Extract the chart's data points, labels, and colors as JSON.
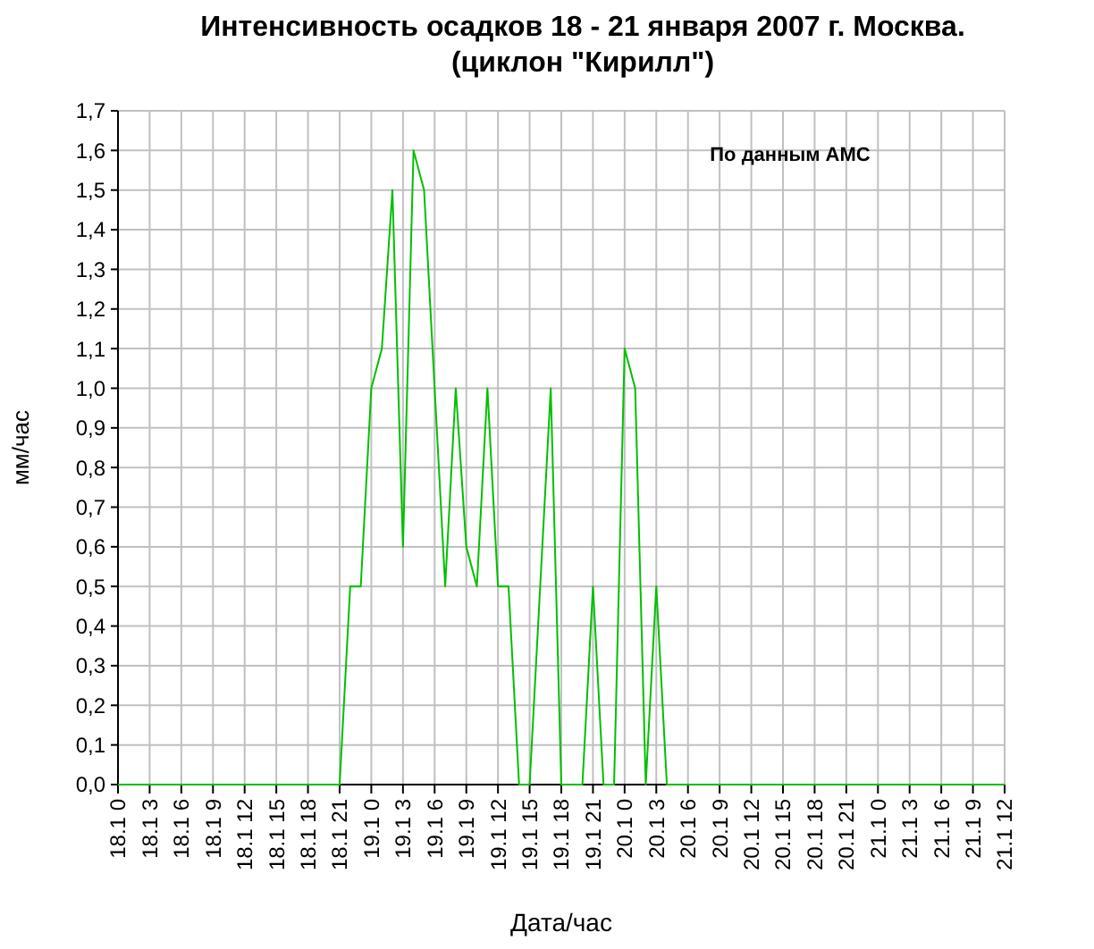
{
  "chart_data": {
    "type": "line",
    "title": "Интенсивность осадков 18 - 21 января 2007 г. Москва.",
    "subtitle": "(циклон \"Кирилл\")",
    "xlabel": "Дата/час",
    "ylabel": "мм/час",
    "annotations": [
      "По данным АМС"
    ],
    "categories": [
      "18.1 0",
      null,
      null,
      "18.1 3",
      null,
      null,
      "18.1 6",
      null,
      null,
      "18.1 9",
      null,
      null,
      "18.1 12",
      null,
      null,
      "18.1 15",
      null,
      null,
      "18.1 18",
      null,
      null,
      "18.1 21",
      null,
      null,
      "19.1 0",
      null,
      null,
      "19.1 3",
      null,
      null,
      "19.1 6",
      null,
      null,
      "19.1 9",
      null,
      null,
      "19.1 12",
      null,
      null,
      "19.1 15",
      null,
      null,
      "19.1 18",
      null,
      null,
      "19.1 21",
      null,
      null,
      "20.1 0",
      null,
      null,
      "20.1 3",
      null,
      null,
      "20.1 6",
      null,
      null,
      "20.1 9",
      null,
      null,
      "20.1 12",
      null,
      null,
      "20.1 15",
      null,
      null,
      "20.1 18",
      null,
      null,
      "20.1 21",
      null,
      null,
      "21.1 0",
      null,
      null,
      "21.1 3",
      null,
      null,
      "21.1 6",
      null,
      null,
      "21.1 9",
      null,
      null,
      "21.1 12"
    ],
    "series": [
      {
        "color": "#00c000",
        "values": [
          0,
          0,
          0,
          0,
          0,
          0,
          0,
          0,
          0,
          0,
          0,
          0,
          0,
          0,
          0,
          0,
          0,
          0,
          0,
          0,
          0,
          0,
          0.5,
          0.5,
          1.0,
          1.1,
          1.5,
          0.6,
          1.6,
          1.5,
          1.0,
          0.5,
          1.0,
          0.6,
          0.5,
          1.0,
          0.5,
          0.5,
          0,
          0,
          0.5,
          1.0,
          0,
          0,
          0,
          0.5,
          0,
          0,
          1.1,
          1.0,
          0,
          0.5,
          0,
          0,
          0,
          0,
          0,
          0,
          0,
          0,
          0,
          0,
          0,
          0,
          0,
          0,
          0,
          0,
          0,
          0,
          0,
          0,
          0,
          0,
          0,
          0,
          0,
          0,
          0,
          0,
          0,
          0,
          0,
          0,
          0
        ]
      }
    ],
    "ylim": [
      0,
      1.7
    ],
    "yticks": [
      {
        "value": 0,
        "label": "0,0"
      },
      {
        "value": 0.1,
        "label": "0,1"
      },
      {
        "value": 0.2,
        "label": "0,2"
      },
      {
        "value": 0.3,
        "label": "0,3"
      },
      {
        "value": 0.4,
        "label": "0,4"
      },
      {
        "value": 0.5,
        "label": "0,5"
      },
      {
        "value": 0.6,
        "label": "0,6"
      },
      {
        "value": 0.7,
        "label": "0,7"
      },
      {
        "value": 0.8,
        "label": "0,8"
      },
      {
        "value": 0.9,
        "label": "0,9"
      },
      {
        "value": 1.0,
        "label": "1,0"
      },
      {
        "value": 1.1,
        "label": "1,1"
      },
      {
        "value": 1.2,
        "label": "1,2"
      },
      {
        "value": 1.3,
        "label": "1,3"
      },
      {
        "value": 1.4,
        "label": "1,4"
      },
      {
        "value": 1.5,
        "label": "1,5"
      },
      {
        "value": 1.6,
        "label": "1,6"
      },
      {
        "value": 1.7,
        "label": "1,7"
      }
    ],
    "grid": true
  }
}
